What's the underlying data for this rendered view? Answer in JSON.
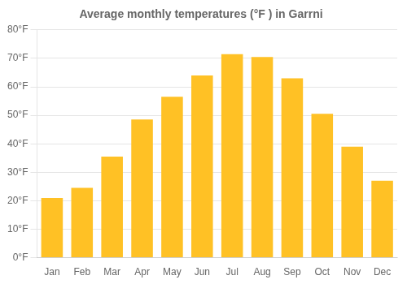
{
  "chart_data": {
    "type": "bar",
    "title": "Average monthly temperatures (°F ) in Garrni",
    "categories": [
      "Jan",
      "Feb",
      "Mar",
      "Apr",
      "May",
      "Jun",
      "Jul",
      "Aug",
      "Sep",
      "Oct",
      "Nov",
      "Dec"
    ],
    "values": [
      21,
      24.5,
      35.5,
      48.5,
      56.5,
      64,
      71.5,
      70.5,
      63,
      50.5,
      39,
      27
    ],
    "color": "#FFC125",
    "ylim": [
      0,
      80
    ],
    "yticks": [
      {
        "value": 0,
        "label": "0°F"
      },
      {
        "value": 10,
        "label": "10°F"
      },
      {
        "value": 20,
        "label": "20°F"
      },
      {
        "value": 30,
        "label": "30°F"
      },
      {
        "value": 40,
        "label": "40°F"
      },
      {
        "value": 50,
        "label": "50°F"
      },
      {
        "value": 60,
        "label": "60°F"
      },
      {
        "value": 70,
        "label": "70°F"
      },
      {
        "value": 80,
        "label": "80°F"
      }
    ],
    "grid": true
  }
}
